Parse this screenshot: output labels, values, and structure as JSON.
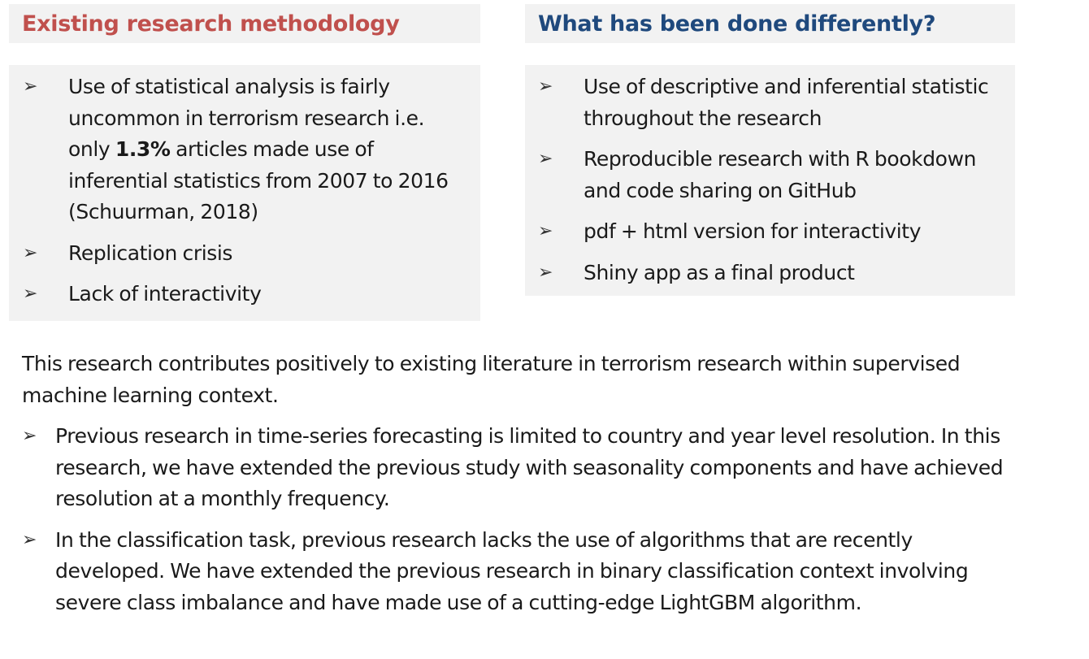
{
  "left_panel": {
    "title": "Existing research methodology",
    "items": [
      {
        "pre": "Use of statistical analysis is fairly uncommon in terrorism research i.e. only ",
        "bold": "1.3%",
        "post": " articles made use of inferential statistics from 2007 to 2016 (Schuurman, 2018)"
      },
      {
        "pre": "Replication crisis",
        "bold": "",
        "post": ""
      },
      {
        "pre": "Lack of interactivity",
        "bold": "",
        "post": ""
      }
    ]
  },
  "right_panel": {
    "title": "What has been done differently?",
    "items": [
      "Use of descriptive and inferential statistic throughout the research",
      "Reproducible research with R bookdown and code sharing on GitHub",
      "pdf + html version for interactivity",
      "Shiny app as a final product"
    ]
  },
  "summary": "This research contributes positively to existing literature in terrorism research within supervised machine learning context.",
  "contributions": [
    "Previous research in time-series forecasting is limited to country and year level resolution. In this research, we have extended the previous study with seasonality components and have achieved resolution at a monthly frequency.",
    " In the classification task, previous research lacks the use of algorithms that are recently developed. We have extended the previous research in binary classification context involving severe class imbalance and have made use of a cutting-edge LightGBM algorithm."
  ],
  "bullet_icon": "arrow-bullet-icon",
  "bullet_glyph": "➢",
  "colors": {
    "left_title": "#c0504d",
    "right_title": "#1f497d",
    "panel_bg": "#f2f2f2"
  }
}
